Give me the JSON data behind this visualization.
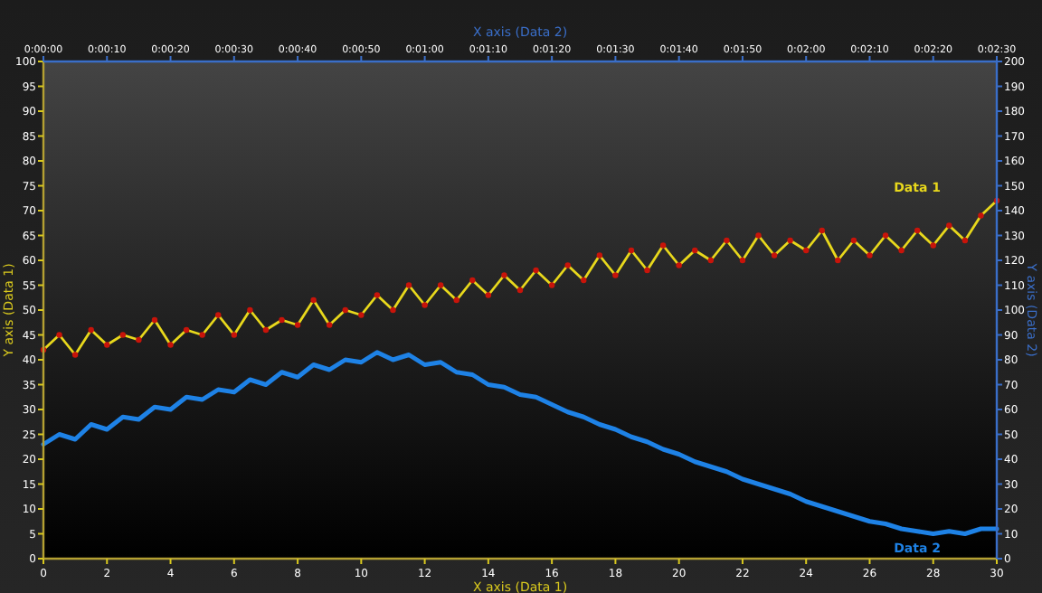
{
  "chart_data": {
    "type": "line",
    "xlabel": "X axis (Data 1)",
    "ylabel": "Y axis (Data 1)",
    "y2label": "Y axis (Data 2)",
    "x2label": "X axis (Data 2)",
    "xlim": [
      0,
      30
    ],
    "xticks": [
      0,
      2,
      4,
      6,
      8,
      10,
      12,
      14,
      16,
      18,
      20,
      22,
      24,
      26,
      28,
      30
    ],
    "ylim": [
      0,
      100
    ],
    "yticks": [
      0,
      5,
      10,
      15,
      20,
      25,
      30,
      35,
      40,
      45,
      50,
      55,
      60,
      65,
      70,
      75,
      80,
      85,
      90,
      95,
      100
    ],
    "y2lim": [
      0,
      200
    ],
    "y2ticks": [
      0,
      10,
      20,
      30,
      40,
      50,
      60,
      70,
      80,
      90,
      100,
      110,
      120,
      130,
      140,
      150,
      160,
      170,
      180,
      190,
      200
    ],
    "x2lim": [
      0,
      150
    ],
    "x2ticks": [
      {
        "value": 0,
        "label": "0:00:00"
      },
      {
        "value": 10,
        "label": "0:00:10"
      },
      {
        "value": 20,
        "label": "0:00:20"
      },
      {
        "value": 30,
        "label": "0:00:30"
      },
      {
        "value": 40,
        "label": "0:00:40"
      },
      {
        "value": 50,
        "label": "0:00:50"
      },
      {
        "value": 60,
        "label": "0:01:00"
      },
      {
        "value": 70,
        "label": "0:01:10"
      },
      {
        "value": 80,
        "label": "0:01:20"
      },
      {
        "value": 90,
        "label": "0:01:30"
      },
      {
        "value": 100,
        "label": "0:01:40"
      },
      {
        "value": 110,
        "label": "0:01:50"
      },
      {
        "value": 120,
        "label": "0:02:00"
      },
      {
        "value": 130,
        "label": "0:02:10"
      },
      {
        "value": 140,
        "label": "0:02:20"
      },
      {
        "value": 150,
        "label": "0:02:30"
      }
    ],
    "grid": false,
    "series": [
      {
        "name": "Data 1",
        "color": "#e8d81c",
        "marker": "circle",
        "x": [
          0,
          0.5,
          1,
          1.5,
          2,
          2.5,
          3,
          3.5,
          4,
          4.5,
          5,
          5.5,
          6,
          6.5,
          7,
          7.5,
          8,
          8.5,
          9,
          9.5,
          10,
          10.5,
          11,
          11.5,
          12,
          12.5,
          13,
          13.5,
          14,
          14.5,
          15,
          15.5,
          16,
          16.5,
          17,
          17.5,
          18,
          18.5,
          19,
          19.5,
          20,
          20.5,
          21,
          21.5,
          22,
          22.5,
          23,
          23.5,
          24,
          24.5,
          25,
          25.5,
          26,
          26.5,
          27,
          27.5,
          28,
          28.5,
          29,
          29.5,
          30
        ],
        "values": [
          42,
          45,
          41,
          46,
          43,
          45,
          44,
          48,
          43,
          46,
          45,
          49,
          45,
          50,
          46,
          48,
          47,
          52,
          47,
          50,
          49,
          53,
          50,
          55,
          51,
          55,
          52,
          56,
          53,
          57,
          54,
          58,
          55,
          59,
          56,
          61,
          57,
          62,
          58,
          63,
          59,
          62,
          60,
          64,
          60,
          65,
          61,
          64,
          62,
          66,
          60,
          64,
          61,
          65,
          62,
          66,
          63,
          67,
          64,
          69,
          72
        ]
      },
      {
        "name": "Data 2",
        "color": "#1e82e6",
        "axis": "y2",
        "marker": "none",
        "x": [
          0,
          0.5,
          1,
          1.5,
          2,
          2.5,
          3,
          3.5,
          4,
          4.5,
          5,
          5.5,
          6,
          6.5,
          7,
          7.5,
          8,
          8.5,
          9,
          9.5,
          10,
          10.5,
          11,
          11.5,
          12,
          12.5,
          13,
          13.5,
          14,
          14.5,
          15,
          15.5,
          16,
          16.5,
          17,
          17.5,
          18,
          18.5,
          19,
          19.5,
          20,
          20.5,
          21,
          21.5,
          22,
          22.5,
          23,
          23.5,
          24,
          24.5,
          25,
          25.5,
          26,
          26.5,
          27,
          27.5,
          28,
          28.5,
          29,
          29.5,
          30
        ],
        "values": [
          46,
          50,
          48,
          54,
          52,
          57,
          56,
          61,
          60,
          65,
          64,
          68,
          67,
          72,
          70,
          75,
          73,
          78,
          76,
          80,
          79,
          83,
          80,
          82,
          78,
          79,
          75,
          74,
          70,
          69,
          66,
          65,
          62,
          59,
          57,
          54,
          52,
          49,
          47,
          44,
          42,
          39,
          37,
          35,
          32,
          30,
          28,
          26,
          23,
          21,
          19,
          17,
          15,
          14,
          12,
          11,
          10,
          11,
          10,
          12,
          12
        ]
      }
    ]
  }
}
